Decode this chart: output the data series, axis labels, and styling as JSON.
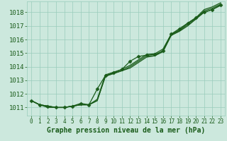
{
  "bg_color": "#cce8dd",
  "grid_color": "#99ccbb",
  "line_color": "#1a5c1a",
  "xlabel": "Graphe pression niveau de la mer (hPa)",
  "xlim": [
    -0.5,
    23.5
  ],
  "ylim": [
    1010.4,
    1018.8
  ],
  "yticks": [
    1011,
    1012,
    1013,
    1014,
    1015,
    1016,
    1017,
    1018
  ],
  "xticks": [
    0,
    1,
    2,
    3,
    4,
    5,
    6,
    7,
    8,
    9,
    10,
    11,
    12,
    13,
    14,
    15,
    16,
    17,
    18,
    19,
    20,
    21,
    22,
    23
  ],
  "series": [
    [
      1011.5,
      1011.2,
      1011.1,
      1011.0,
      1011.0,
      1011.1,
      1011.2,
      1011.2,
      1011.5,
      1013.3,
      1013.5,
      1013.7,
      1013.9,
      1014.3,
      1014.7,
      1014.8,
      1015.1,
      1016.3,
      1016.6,
      1017.0,
      1017.5,
      1018.0,
      1018.2,
      1018.5
    ],
    [
      1011.5,
      1011.2,
      1011.1,
      1011.0,
      1011.0,
      1011.1,
      1011.2,
      1011.2,
      1011.5,
      1013.3,
      1013.5,
      1013.7,
      1014.0,
      1014.4,
      1014.8,
      1014.8,
      1015.2,
      1016.35,
      1016.65,
      1017.1,
      1017.55,
      1018.1,
      1018.3,
      1018.6
    ],
    [
      1011.5,
      1011.2,
      1011.0,
      1011.0,
      1011.0,
      1011.1,
      1011.2,
      1011.2,
      1011.6,
      1013.4,
      1013.6,
      1013.8,
      1014.1,
      1014.5,
      1014.9,
      1014.95,
      1015.3,
      1016.4,
      1016.7,
      1017.2,
      1017.6,
      1018.2,
      1018.4,
      1018.7
    ],
    [
      1011.5,
      1011.2,
      1011.1,
      1011.0,
      1011.0,
      1011.1,
      1011.3,
      1011.2,
      1012.35,
      1013.35,
      1013.55,
      1013.8,
      1014.4,
      1014.75,
      1014.85,
      1014.9,
      1015.15,
      1016.4,
      1016.8,
      1017.2,
      1017.6,
      1018.0,
      1018.2,
      1018.55
    ]
  ],
  "marker_series_indices": [
    3
  ],
  "marker_style": "D",
  "marker_size": 2.5,
  "line_width": 0.9,
  "font_color": "#1a5c1a",
  "font_size_xlabel": 7,
  "font_size_yticks": 6.5,
  "font_size_xticks": 5.5
}
